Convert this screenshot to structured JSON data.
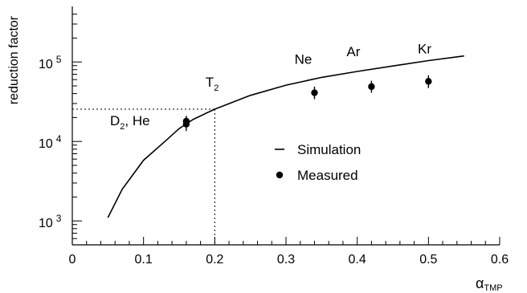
{
  "chart_data": {
    "type": "line",
    "title": "",
    "xlabel": "α",
    "xlabel_sub": "TMP",
    "ylabel": "reduction factor",
    "xlim": [
      0,
      0.6
    ],
    "ylim": [
      500,
      500000
    ],
    "y_scale": "log",
    "x_ticks": [
      {
        "value": 0,
        "label": "0"
      },
      {
        "value": 0.1,
        "label": "0.1"
      },
      {
        "value": 0.2,
        "label": "0.2"
      },
      {
        "value": 0.3,
        "label": "0.3"
      },
      {
        "value": 0.4,
        "label": "0.4"
      },
      {
        "value": 0.5,
        "label": "0.5"
      },
      {
        "value": 0.6,
        "label": "0.6"
      }
    ],
    "y_ticks": [
      {
        "value": 1000,
        "base": "10",
        "exp": "3"
      },
      {
        "value": 10000,
        "base": "10",
        "exp": "4"
      },
      {
        "value": 100000,
        "base": "10",
        "exp": "5"
      }
    ],
    "series": [
      {
        "name": "Simulation",
        "kind": "line",
        "x": [
          0.05,
          0.07,
          0.1,
          0.13,
          0.15,
          0.17,
          0.2,
          0.25,
          0.3,
          0.35,
          0.4,
          0.45,
          0.5,
          0.55
        ],
        "y": [
          1100,
          2500,
          5800,
          10000,
          14500,
          19000,
          25500,
          38000,
          51000,
          64000,
          76000,
          89000,
          104000,
          119000
        ]
      },
      {
        "name": "Measured",
        "kind": "points",
        "points": [
          {
            "x": 0.16,
            "y": 16500,
            "err_low": 13500,
            "err_high": 20000
          },
          {
            "x": 0.16,
            "y": 18000,
            "err_low": 15500,
            "err_high": 21000
          },
          {
            "x": 0.34,
            "y": 41000,
            "err_low": 34000,
            "err_high": 49000
          },
          {
            "x": 0.42,
            "y": 49000,
            "err_low": 41000,
            "err_high": 58000
          },
          {
            "x": 0.5,
            "y": 57000,
            "err_low": 47000,
            "err_high": 68000
          }
        ]
      }
    ],
    "reference_lines": {
      "x": 0.2,
      "y": 25500
    },
    "annotations": [
      {
        "text": "D",
        "sub": "2",
        "tail": ", He",
        "x": 0.053,
        "y": 16000
      },
      {
        "text": "T",
        "sub": "2",
        "tail": "",
        "x": 0.187,
        "y": 49000
      },
      {
        "text": "Ne",
        "sub": "",
        "tail": "",
        "x": 0.312,
        "y": 95000
      },
      {
        "text": "Ar",
        "sub": "",
        "tail": "",
        "x": 0.385,
        "y": 118000
      },
      {
        "text": "Kr",
        "sub": "",
        "tail": "",
        "x": 0.485,
        "y": 128000
      }
    ],
    "legend": {
      "placement": "center",
      "entries": [
        {
          "label": "Simulation",
          "marker": "line"
        },
        {
          "label": "Measured",
          "marker": "dot"
        }
      ]
    },
    "grid": false
  }
}
